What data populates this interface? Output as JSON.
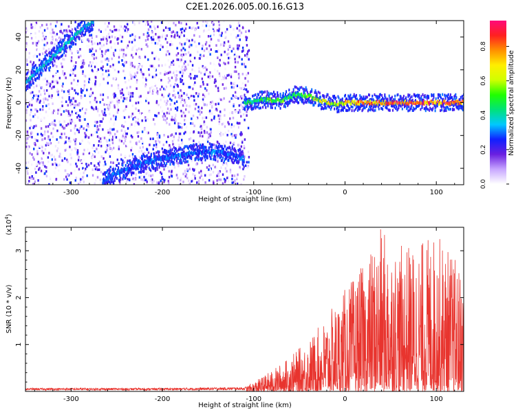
{
  "title": "C2E1.2026.005.00.16.G13",
  "chart_data": [
    {
      "type": "heatmap",
      "title": "",
      "xlabel": "Height of straight line (km)",
      "ylabel": "Frequency (Hz)",
      "xlim": [
        -350,
        130
      ],
      "ylim": [
        -50,
        50
      ],
      "xticks": [
        -300,
        -200,
        -100,
        0,
        100
      ],
      "yticks": [
        -40,
        -20,
        0,
        20,
        40
      ],
      "xtick_labels": [
        "-300",
        "-200",
        "-100",
        "0",
        "100"
      ],
      "ytick_labels": [
        "-40",
        "-20",
        "0",
        "20",
        "40"
      ],
      "noise_region_x": [
        -350,
        -105
      ],
      "noise_level": 0.12,
      "traces": [
        {
          "name": "rising line",
          "x": [
            -350,
            -335,
            -320,
            -305,
            -290,
            -275
          ],
          "y": [
            12,
            20,
            28,
            36,
            44,
            50
          ],
          "amplitude": 0.4
        },
        {
          "name": "lower curve",
          "x": [
            -265,
            -250,
            -235,
            -220,
            -200,
            -180,
            -160,
            -140,
            -120,
            -110
          ],
          "y": [
            -48,
            -43,
            -40,
            -37,
            -34,
            -32,
            -30,
            -30,
            -32,
            -35
          ],
          "amplitude": 0.32
        },
        {
          "name": "zero line",
          "x": [
            -110,
            -90,
            -70,
            -55,
            -40,
            -25,
            -10,
            0,
            20,
            40,
            60,
            80,
            100,
            130
          ],
          "y": [
            0,
            2,
            1,
            5,
            4,
            1,
            -1,
            0,
            0,
            0,
            0,
            0,
            0,
            0
          ],
          "amplitude": [
            0.45,
            0.5,
            0.55,
            0.5,
            0.55,
            0.7,
            0.65,
            0.75,
            0.85,
            0.85,
            0.9,
            0.9,
            0.9,
            0.88
          ]
        }
      ],
      "colorbar": {
        "label": "Normalized spectral amplitude",
        "range": [
          0,
          0.95
        ],
        "ticks": [
          0.0,
          0.2,
          0.4,
          0.6,
          0.8
        ],
        "tick_labels": [
          "0.0",
          "0.2",
          "0.4",
          "0.6",
          "0.8"
        ],
        "colors": [
          "#ffffff",
          "#c7a6ff",
          "#6a1fe0",
          "#1020ff",
          "#00c8ff",
          "#00e27a",
          "#20ff00",
          "#d0ff00",
          "#ffee00",
          "#ff9000",
          "#ff2020",
          "#ff0a7a"
        ]
      }
    },
    {
      "type": "line",
      "title": "",
      "xlabel": "Height of straight line (km)",
      "ylabel": "SNR (10 * v/v)",
      "scale_label": "(x10",
      "scale_exponent": "4",
      "scale_suffix": ")",
      "xlim": [
        -350,
        130
      ],
      "ylim": [
        0,
        3.5
      ],
      "xticks": [
        -300,
        -200,
        -100,
        0,
        100
      ],
      "yticks": [
        1,
        2,
        3
      ],
      "xtick_labels": [
        "-300",
        "-200",
        "-100",
        "0",
        "100"
      ],
      "ytick_labels": [
        "1",
        "2",
        "3"
      ],
      "color": "#e8342e",
      "envelope": {
        "x": [
          -350,
          -200,
          -110,
          -100,
          -80,
          -60,
          -40,
          -20,
          0,
          20,
          40,
          60,
          80,
          100,
          120,
          130
        ],
        "y": [
          0.08,
          0.08,
          0.1,
          0.2,
          0.45,
          0.75,
          1.1,
          1.6,
          2.2,
          2.7,
          3.5,
          3.1,
          3.2,
          3.4,
          2.9,
          2.4
        ]
      }
    }
  ]
}
